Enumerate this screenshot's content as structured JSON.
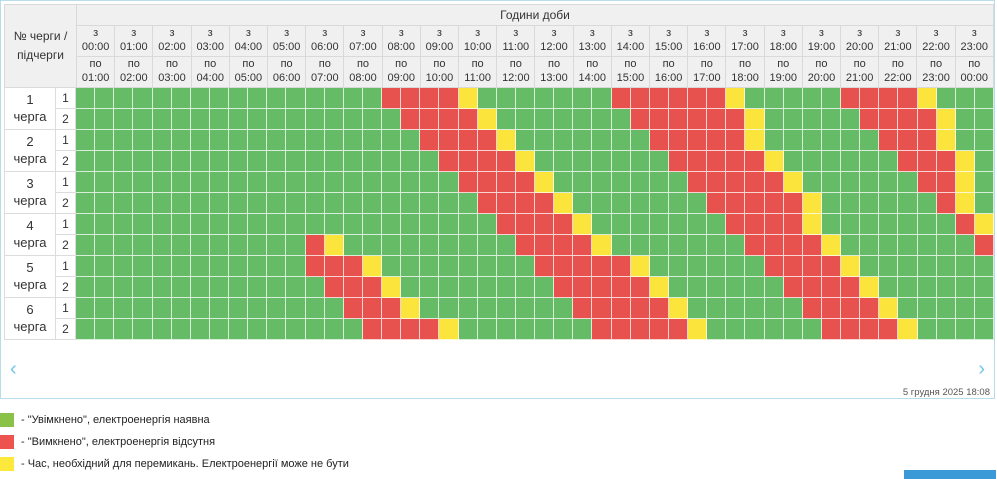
{
  "chart_data": {
    "type": "heatmap",
    "title": "Години доби",
    "corner_label": "№ черги /\nпідчерги",
    "from_prefix": "з",
    "to_prefix": "по",
    "hours_from": [
      "00:00",
      "01:00",
      "02:00",
      "03:00",
      "04:00",
      "05:00",
      "06:00",
      "07:00",
      "08:00",
      "09:00",
      "10:00",
      "11:00",
      "12:00",
      "13:00",
      "14:00",
      "15:00",
      "16:00",
      "17:00",
      "18:00",
      "19:00",
      "20:00",
      "21:00",
      "22:00",
      "23:00"
    ],
    "hours_to": [
      "01:00",
      "02:00",
      "03:00",
      "04:00",
      "05:00",
      "06:00",
      "07:00",
      "08:00",
      "09:00",
      "10:00",
      "11:00",
      "12:00",
      "13:00",
      "14:00",
      "15:00",
      "16:00",
      "17:00",
      "18:00",
      "19:00",
      "20:00",
      "21:00",
      "22:00",
      "23:00",
      "00:00"
    ],
    "slot_minutes": 30,
    "states": {
      "G": {
        "key": "on",
        "color": "#66bb66",
        "label": "Увімкнено, електроенергія наявна"
      },
      "R": {
        "key": "off",
        "color": "#e8524e",
        "label": "Вимкнено, електроенергія відсутня"
      },
      "Y": {
        "key": "switching",
        "color": "#fbe43c",
        "label": "Час, необхідний для перемикань"
      }
    },
    "queues": [
      {
        "number": "1",
        "word": "черга",
        "rows": [
          {
            "sub": "1",
            "pattern": "GGGGGGGGGGGGGGGGRRRRYGGGGGGGRRRRRRYGGGGGRRRRYGGG"
          },
          {
            "sub": "2",
            "pattern": "GGGGGGGGGGGGGGGGGRRRRYGGGGGGGRRRRRRYGGGGGRRRRYGG"
          }
        ]
      },
      {
        "number": "2",
        "word": "черга",
        "rows": [
          {
            "sub": "1",
            "pattern": "GGGGGGGGGGGGGGGGGGRRRRYGGGGGGGRRRRRYGGGGGGRRRYGG"
          },
          {
            "sub": "2",
            "pattern": "GGGGGGGGGGGGGGGGGGGRRRRYGGGGGGGRRRRRYGGGGGGRRRYG"
          }
        ]
      },
      {
        "number": "3",
        "word": "черга",
        "rows": [
          {
            "sub": "1",
            "pattern": "GGGGGGGGGGGGGGGGGGGGRRRRYGGGGGGGRRRRRYGGGGGGRRYG"
          },
          {
            "sub": "2",
            "pattern": "GGGGGGGGGGGGGGGGGGGGGRRRRYGGGGGGGRRRRRYGGGGGGRYG"
          }
        ]
      },
      {
        "number": "4",
        "word": "черга",
        "rows": [
          {
            "sub": "1",
            "pattern": "GGGGGGGGGGGGGGGGGGGGGGRRRRYGGGGGGGRRRRYGGGGGGGRY"
          },
          {
            "sub": "2",
            "pattern": "GGGGGGGGGGGGRYGGGGGGGGGRRRRYGGGGGGGRRRRYGGGGGGGR"
          }
        ]
      },
      {
        "number": "5",
        "word": "черга",
        "rows": [
          {
            "sub": "1",
            "pattern": "GGGGGGGGGGGGRRRYGGGGGGGGRRRRRYGGGGGGRRRRYGGGGGGG"
          },
          {
            "sub": "2",
            "pattern": "GGGGGGGGGGGGGRRRYGGGGGGGGRRRRRYGGGGGGRRRRYGGGGGG"
          }
        ]
      },
      {
        "number": "6",
        "word": "черга",
        "rows": [
          {
            "sub": "1",
            "pattern": "GGGGGGGGGGGGGGRRRYGGGGGGGGRRRRRYGGGGGGRRRRYGGGGG"
          },
          {
            "sub": "2",
            "pattern": "GGGGGGGGGGGGGGGRRRRYGGGGGGGRRRRRYGGGGGGRRRRYGGGG"
          }
        ]
      }
    ],
    "legend": [
      {
        "color": "#8ac249",
        "label": "- \"Увімкнено\", електроенергія наявна"
      },
      {
        "color": "#ee544f",
        "label": "- \"Вимкнено\", електроенергія відсутня"
      },
      {
        "color": "#fde93c",
        "label": "- Час, необхідний для перемикань. Електроенергії може не бути"
      }
    ]
  },
  "footer": {
    "prev": "‹",
    "next": "›",
    "timestamp": "5 грудня 2025 18:08"
  }
}
